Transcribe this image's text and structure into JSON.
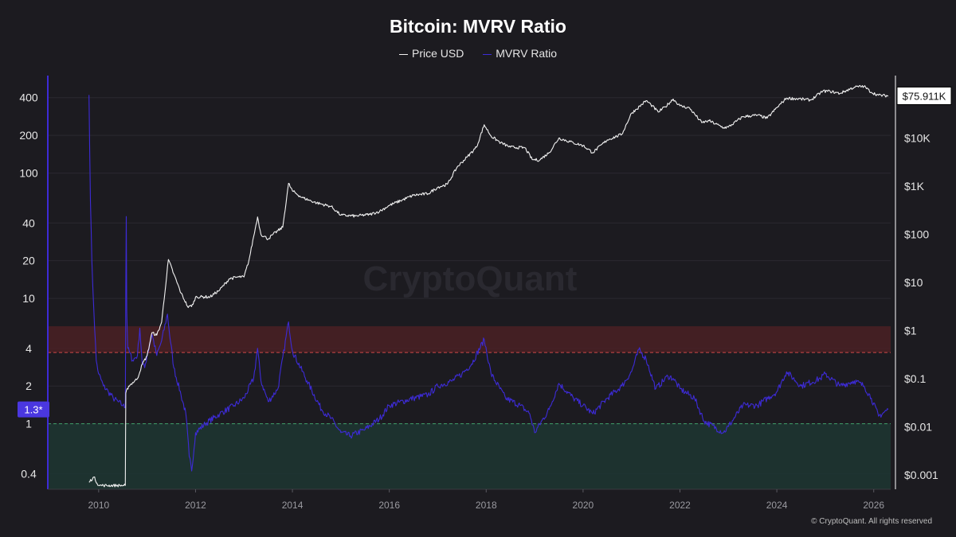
{
  "chart_data": {
    "type": "line",
    "title": "Bitcoin: MVRV Ratio",
    "watermark": "CryptoQuant",
    "copyright": "© CryptoQuant. All rights reserved",
    "legend_position": "top-center",
    "grid": true,
    "x_ticks": [
      "2010",
      "2012",
      "2014",
      "2016",
      "2018",
      "2020",
      "2022",
      "2024",
      "2026"
    ],
    "x_range": [
      2008.95,
      2026.35
    ],
    "y_left": {
      "scale": "log",
      "range": [
        0.3,
        600
      ],
      "ticks": [
        0.4,
        1,
        2,
        4,
        10,
        20,
        40,
        100,
        200,
        400
      ],
      "tick_labels": [
        "0.4",
        "1",
        "2",
        "4",
        "10",
        "20",
        "40",
        "100",
        "200",
        "400"
      ],
      "current_badge": "1.3*"
    },
    "y_right": {
      "scale": "log",
      "range": [
        0.0005,
        200000
      ],
      "ticks": [
        0.001,
        0.01,
        0.1,
        1,
        10,
        100,
        1000,
        10000
      ],
      "tick_labels": [
        "$0.001",
        "$0.01",
        "$0.1",
        "$1",
        "$10",
        "$100",
        "$1K",
        "$10K"
      ],
      "current_badge": "$75.911K"
    },
    "zones": [
      {
        "name": "overvalued",
        "from": 3.7,
        "to": 6.0,
        "color": "#4a2025",
        "line_color": "#d04848"
      },
      {
        "name": "undervalued",
        "from": 0.3,
        "to": 1.0,
        "color": "#1d3632",
        "line_color": "#3fa06a"
      }
    ],
    "series": [
      {
        "name": "Price USD",
        "axis": "right",
        "color": "#f2f2f2",
        "x": [
          2009.8,
          2009.9,
          2010.0,
          2010.1,
          2010.55,
          2010.56,
          2010.62,
          2010.8,
          2010.9,
          2011.0,
          2011.1,
          2011.2,
          2011.3,
          2011.44,
          2011.55,
          2011.7,
          2011.85,
          2011.95,
          2012.0,
          2012.3,
          2012.5,
          2012.7,
          2012.9,
          2013.0,
          2013.1,
          2013.2,
          2013.28,
          2013.35,
          2013.5,
          2013.6,
          2013.8,
          2013.92,
          2014.0,
          2014.2,
          2014.5,
          2014.8,
          2015.0,
          2015.3,
          2015.6,
          2015.8,
          2016.0,
          2016.5,
          2016.8,
          2017.0,
          2017.2,
          2017.4,
          2017.6,
          2017.8,
          2017.96,
          2018.1,
          2018.3,
          2018.5,
          2018.8,
          2018.95,
          2019.1,
          2019.3,
          2019.5,
          2019.8,
          2020.0,
          2020.2,
          2020.5,
          2020.8,
          2021.0,
          2021.1,
          2021.3,
          2021.4,
          2021.55,
          2021.7,
          2021.86,
          2022.0,
          2022.2,
          2022.45,
          2022.6,
          2022.9,
          2023.0,
          2023.3,
          2023.6,
          2023.8,
          2024.0,
          2024.2,
          2024.5,
          2024.7,
          2024.95,
          2025.1,
          2025.3,
          2025.6,
          2025.8,
          2025.95,
          2026.1,
          2026.3
        ],
        "values": [
          0.0007,
          0.0009,
          0.0006,
          0.0006,
          0.0006,
          0.05,
          0.07,
          0.1,
          0.2,
          0.3,
          0.9,
          0.8,
          1.5,
          30,
          15,
          6,
          3,
          3.5,
          5,
          5,
          7,
          12,
          13,
          13,
          28,
          90,
          230,
          100,
          80,
          100,
          140,
          1150,
          800,
          580,
          450,
          380,
          250,
          240,
          260,
          300,
          400,
          650,
          700,
          950,
          1100,
          2500,
          4000,
          6500,
          19000,
          11000,
          8000,
          6500,
          6300,
          3600,
          3500,
          5000,
          10000,
          8000,
          7000,
          5000,
          9200,
          12000,
          33000,
          40000,
          60000,
          50000,
          35000,
          45000,
          65000,
          47000,
          42000,
          21000,
          23000,
          16500,
          17000,
          28000,
          30000,
          26000,
          43000,
          68000,
          65000,
          62000,
          95000,
          94000,
          85000,
          115000,
          120000,
          90000,
          78000,
          75911
        ]
      },
      {
        "name": "MVRV Ratio",
        "axis": "left",
        "color": "#3d2bd6",
        "x": [
          2009.8,
          2009.83,
          2009.86,
          2009.9,
          2009.95,
          2010.0,
          2010.1,
          2010.2,
          2010.3,
          2010.4,
          2010.5,
          2010.55,
          2010.56,
          2010.57,
          2010.58,
          2010.6,
          2010.7,
          2010.8,
          2010.85,
          2010.9,
          2010.95,
          2011.0,
          2011.1,
          2011.2,
          2011.3,
          2011.42,
          2011.45,
          2011.55,
          2011.7,
          2011.8,
          2011.87,
          2011.92,
          2012.0,
          2012.2,
          2012.5,
          2012.8,
          2013.0,
          2013.2,
          2013.28,
          2013.35,
          2013.5,
          2013.7,
          2013.92,
          2014.0,
          2014.3,
          2014.6,
          2014.8,
          2015.0,
          2015.2,
          2015.5,
          2015.8,
          2016.0,
          2016.5,
          2016.8,
          2017.0,
          2017.3,
          2017.5,
          2017.7,
          2017.96,
          2018.1,
          2018.4,
          2018.7,
          2018.9,
          2019.0,
          2019.3,
          2019.5,
          2019.8,
          2020.0,
          2020.2,
          2020.5,
          2020.8,
          2021.0,
          2021.15,
          2021.3,
          2021.5,
          2021.75,
          2021.86,
          2022.0,
          2022.3,
          2022.5,
          2022.9,
          2023.0,
          2023.3,
          2023.6,
          2024.0,
          2024.2,
          2024.5,
          2024.9,
          2025.0,
          2025.3,
          2025.6,
          2025.8,
          2025.95,
          2026.1,
          2026.3
        ],
        "values": [
          420,
          60,
          20,
          8,
          3.2,
          2.5,
          2.0,
          1.8,
          1.6,
          1.5,
          1.4,
          1.35,
          12,
          45,
          8,
          4,
          3.2,
          3.5,
          5.8,
          3.0,
          2.8,
          3.5,
          5.2,
          3.5,
          4.6,
          7.5,
          5.8,
          2.8,
          1.7,
          1.2,
          0.55,
          0.42,
          0.85,
          1.0,
          1.2,
          1.4,
          1.6,
          2.3,
          4.0,
          2.2,
          1.5,
          1.9,
          6.5,
          3.8,
          2.2,
          1.3,
          1.1,
          0.85,
          0.8,
          0.9,
          1.1,
          1.4,
          1.6,
          1.7,
          2.0,
          2.2,
          2.5,
          3.0,
          4.7,
          2.5,
          1.6,
          1.4,
          1.2,
          0.85,
          1.3,
          2.1,
          1.6,
          1.4,
          1.2,
          1.6,
          2.0,
          2.6,
          3.9,
          3.3,
          1.9,
          2.4,
          2.3,
          1.9,
          1.6,
          1.05,
          0.85,
          0.95,
          1.4,
          1.4,
          1.8,
          2.6,
          2.0,
          2.3,
          2.5,
          2.0,
          2.2,
          2.0,
          1.6,
          1.15,
          1.3
        ]
      }
    ]
  }
}
